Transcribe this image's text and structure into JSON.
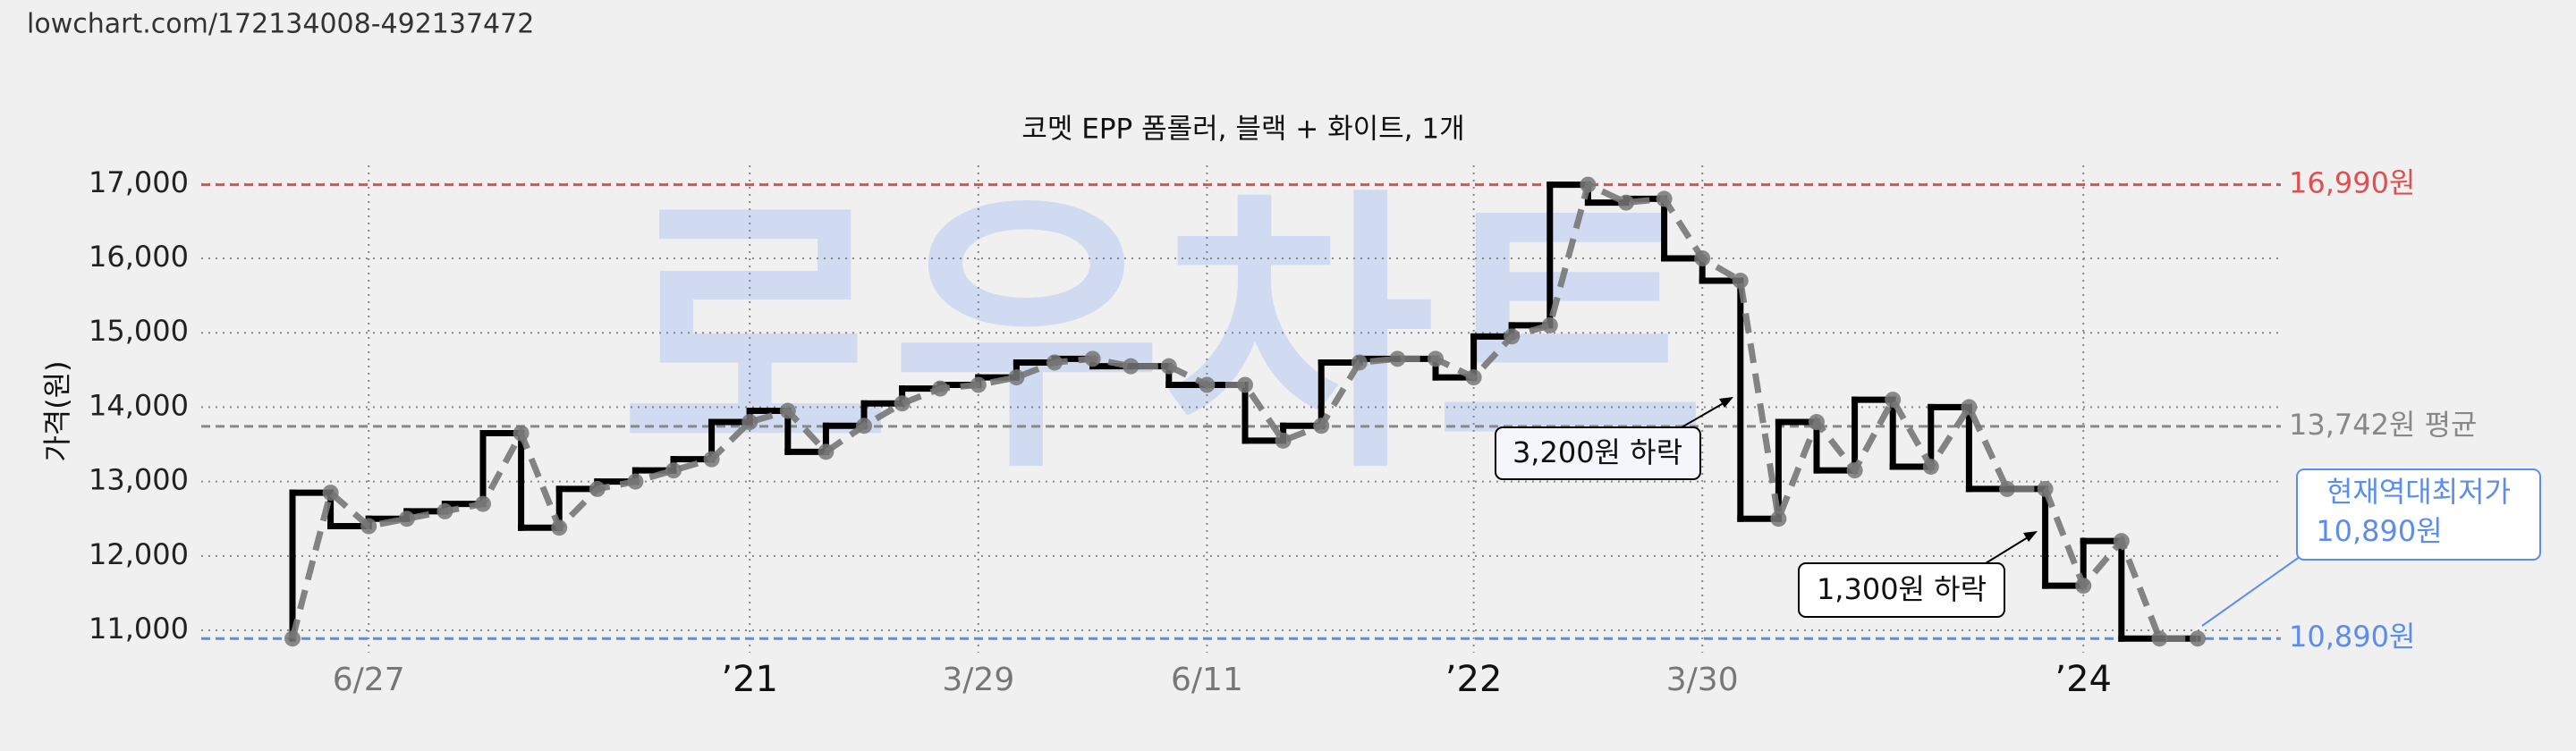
{
  "header": {
    "url": "lowchart.com/172134008-492137472"
  },
  "chart_data": {
    "type": "line",
    "title": "코멧 EPP 폼롤러, 블랙 + 화이트, 1개",
    "watermark": "로우차트",
    "y_label": "가격(원)",
    "categories": [
      null,
      null,
      "6/27",
      null,
      null,
      null,
      null,
      null,
      null,
      null,
      null,
      null,
      "’21",
      null,
      null,
      null,
      null,
      null,
      "3/29",
      null,
      null,
      null,
      null,
      null,
      "6/11",
      null,
      null,
      null,
      null,
      null,
      null,
      "’22",
      null,
      null,
      null,
      null,
      null,
      "3/30",
      null,
      null,
      null,
      null,
      null,
      null,
      null,
      null,
      null,
      "’24",
      null,
      null,
      null
    ],
    "series": [
      {
        "name": "가격",
        "color": "#777777",
        "values": [
          10890,
          12850,
          12400,
          12500,
          12600,
          12700,
          13650,
          12380,
          12900,
          13000,
          13150,
          13300,
          13800,
          13950,
          13400,
          13750,
          14050,
          14250,
          14300,
          14400,
          14600,
          14650,
          14550,
          14550,
          14300,
          14300,
          13550,
          13750,
          14600,
          14650,
          14650,
          14400,
          14950,
          15100,
          16990,
          16750,
          16800,
          16000,
          15700,
          12500,
          13800,
          13150,
          14100,
          13200,
          14000,
          12900,
          12900,
          11600,
          12200,
          10890,
          10890
        ]
      }
    ],
    "step_color": "#000000",
    "ylim": [
      10700,
      17550
    ],
    "yticks": [
      {
        "value": 11000,
        "label": "11,000"
      },
      {
        "value": 12000,
        "label": "12,000"
      },
      {
        "value": 13000,
        "label": "13,000"
      },
      {
        "value": 14000,
        "label": "14,000"
      },
      {
        "value": 15000,
        "label": "15,000"
      },
      {
        "value": 16000,
        "label": "16,000"
      },
      {
        "value": 17000,
        "label": "17,000"
      }
    ],
    "grid": true,
    "reference_lines": [
      {
        "value": 16990,
        "label": "16,990원",
        "color": "#e05050"
      },
      {
        "value": 13742,
        "label": "13,742원 평균",
        "color": "#888888"
      },
      {
        "value": 10890,
        "label": "10,890원",
        "color": "#5b8def"
      }
    ],
    "annotations": [
      {
        "text": "3,200원 하락"
      },
      {
        "text": "1,300원 하락"
      },
      {
        "lines": [
          "현재역대최저가",
          "10,890원"
        ]
      }
    ]
  }
}
